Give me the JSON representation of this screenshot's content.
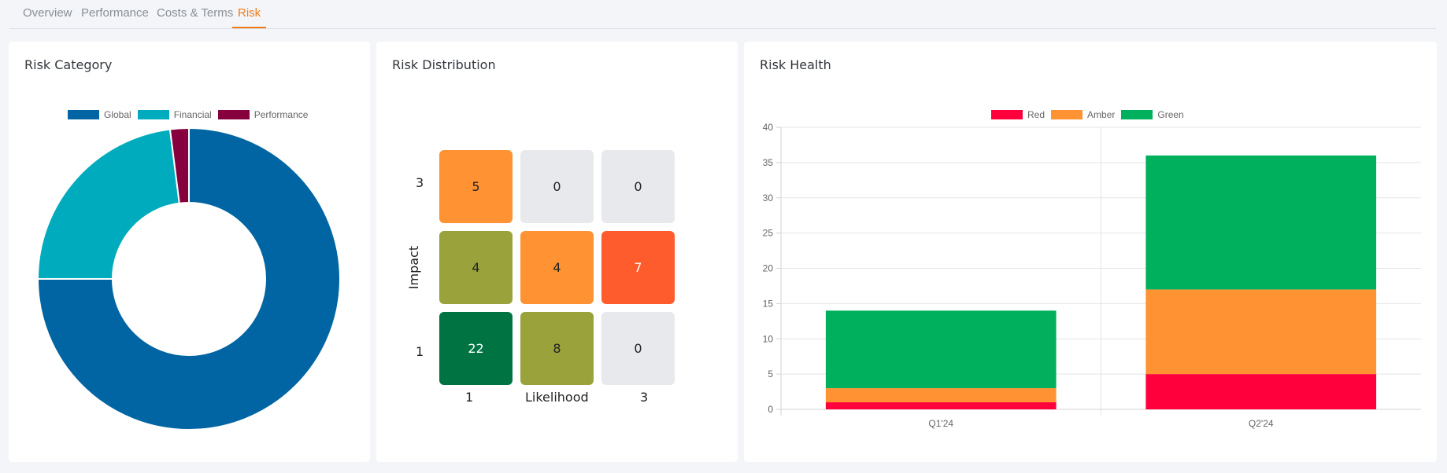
{
  "tabs": [
    {
      "label": "Overview",
      "active": false
    },
    {
      "label": "Performance",
      "active": false
    },
    {
      "label": "Costs & Terms",
      "active": false
    },
    {
      "label": "Risk",
      "active": true
    }
  ],
  "colors": {
    "accent": "#f07c1e",
    "global": "#0065a2",
    "financial": "#00abbd",
    "performance": "#86003e",
    "red": "#ff003c",
    "amber": "#ff9233",
    "green": "#00b05c"
  },
  "risk_category": {
    "title": "Risk Category",
    "legend": [
      "Global",
      "Financial",
      "Performance"
    ],
    "chart_data": {
      "type": "pie",
      "labels": [
        "Global",
        "Financial",
        "Performance"
      ],
      "values": [
        75,
        23,
        2
      ],
      "colors": [
        "#0065a2",
        "#00abbd",
        "#86003e"
      ],
      "legend_position": "top"
    }
  },
  "risk_distribution": {
    "title": "Risk Distribution",
    "y_axis_label": "Impact",
    "x_axis_label": "Likelihood",
    "y_ticks": [
      "3",
      "1"
    ],
    "x_ticks": [
      "1",
      "3"
    ],
    "cells": [
      {
        "value": "5",
        "color": "#ff9233"
      },
      {
        "value": "0",
        "color": "#e8e9ec"
      },
      {
        "value": "0",
        "color": "#e8e9ec"
      },
      {
        "value": "4",
        "color": "#9aa23c"
      },
      {
        "value": "4",
        "color": "#ff9233"
      },
      {
        "value": "7",
        "color": "#ff5c2e"
      },
      {
        "value": "22",
        "color": "#007343"
      },
      {
        "value": "8",
        "color": "#9aa23c"
      },
      {
        "value": "0",
        "color": "#e8e9ec"
      }
    ]
  },
  "risk_health": {
    "title": "Risk Health",
    "legend": [
      "Red",
      "Amber",
      "Green"
    ],
    "chart_data": {
      "type": "bar",
      "stacked": true,
      "categories": [
        "Q1'24",
        "Q2'24"
      ],
      "series": [
        {
          "name": "Red",
          "values": [
            1,
            5
          ],
          "color": "#ff003c"
        },
        {
          "name": "Amber",
          "values": [
            2,
            12
          ],
          "color": "#ff9233"
        },
        {
          "name": "Green",
          "values": [
            11,
            19
          ],
          "color": "#00b05c"
        }
      ],
      "ylim": [
        0,
        40
      ],
      "yticks": [
        0,
        5,
        10,
        15,
        20,
        25,
        30,
        35,
        40
      ],
      "grid": true,
      "legend_position": "top"
    }
  }
}
